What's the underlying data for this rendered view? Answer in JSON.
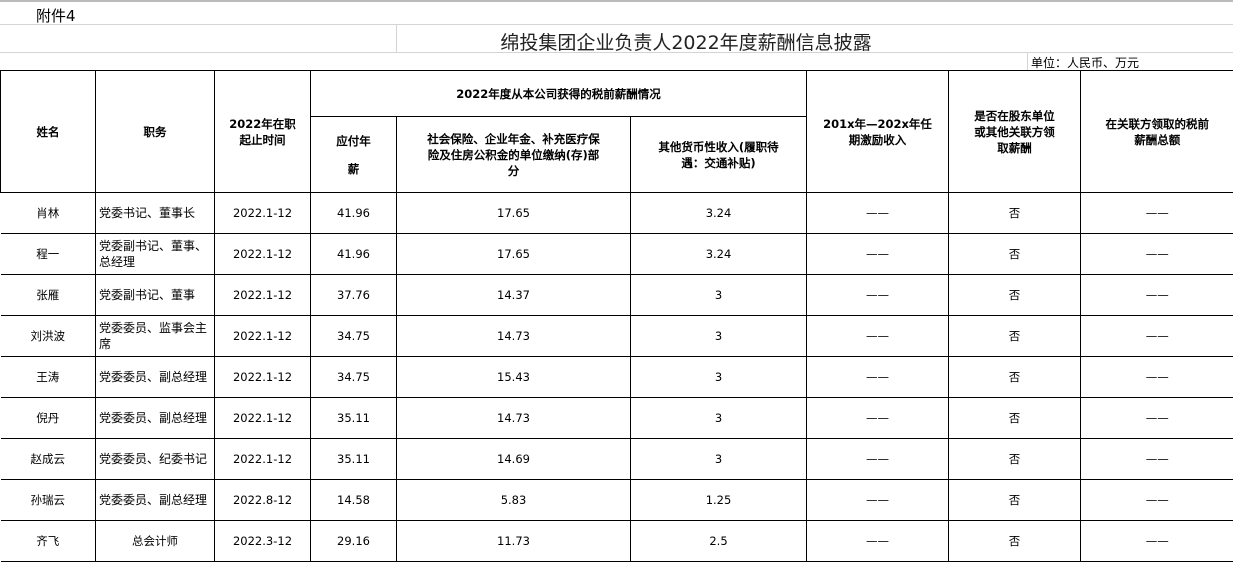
{
  "attachment": "附件4",
  "title": "绵投集团企业负责人2022年度薪酬信息披露",
  "unit": "单位：人民币、万元",
  "headers": {
    "name": "姓名",
    "position": "职务",
    "period": "2022年在职起止时间",
    "group": "2022年度从本公司获得的税前薪酬情况",
    "salary": "应付年薪",
    "insurance": "社会保险、企业年金、补充医疗保险及住房公积金的单位缴纳(存)部分",
    "other": "其他货币性收入(履职待遇：交通补贴)",
    "incentive": "201x年—202x年任期激励收入",
    "shareholder": "是否在股东单位或其他关联方领取薪酬",
    "related": "在关联方领取的税前薪酬总额"
  },
  "rows": [
    {
      "name": "肖林",
      "position": "党委书记、董事长",
      "period": "2022.1-12",
      "salary": "41.96",
      "insurance": "17.65",
      "other": "3.24",
      "incentive": "——",
      "shareholder": "否",
      "related": "——"
    },
    {
      "name": "程一",
      "position": "党委副书记、董事、总经理",
      "period": "2022.1-12",
      "salary": "41.96",
      "insurance": "17.65",
      "other": "3.24",
      "incentive": "——",
      "shareholder": "否",
      "related": "——"
    },
    {
      "name": "张雁",
      "position": "党委副书记、董事",
      "period": "2022.1-12",
      "salary": "37.76",
      "insurance": "14.37",
      "other": "3",
      "incentive": "——",
      "shareholder": "否",
      "related": "——"
    },
    {
      "name": "刘洪波",
      "position": "党委委员、监事会主席",
      "period": "2022.1-12",
      "salary": "34.75",
      "insurance": "14.73",
      "other": "3",
      "incentive": "——",
      "shareholder": "否",
      "related": "——"
    },
    {
      "name": "王涛",
      "position": "党委委员、副总经理",
      "period": "2022.1-12",
      "salary": "34.75",
      "insurance": "15.43",
      "other": "3",
      "incentive": "——",
      "shareholder": "否",
      "related": "——"
    },
    {
      "name": "倪丹",
      "position": "党委委员、副总经理",
      "period": "2022.1-12",
      "salary": "35.11",
      "insurance": "14.73",
      "other": "3",
      "incentive": "——",
      "shareholder": "否",
      "related": "——"
    },
    {
      "name": "赵成云",
      "position": "党委委员、纪委书记",
      "period": "2022.1-12",
      "salary": "35.11",
      "insurance": "14.69",
      "other": "3",
      "incentive": "——",
      "shareholder": "否",
      "related": "——"
    },
    {
      "name": "孙瑞云",
      "position": "党委委员、副总经理",
      "period": "2022.8-12",
      "salary": "14.58",
      "insurance": "5.83",
      "other": "1.25",
      "incentive": "——",
      "shareholder": "否",
      "related": "——"
    },
    {
      "name": "齐飞",
      "position": "总会计师",
      "period": "2022.3-12",
      "salary": "29.16",
      "insurance": "11.73",
      "other": "2.5",
      "incentive": "——",
      "shareholder": "否",
      "related": "——"
    }
  ]
}
